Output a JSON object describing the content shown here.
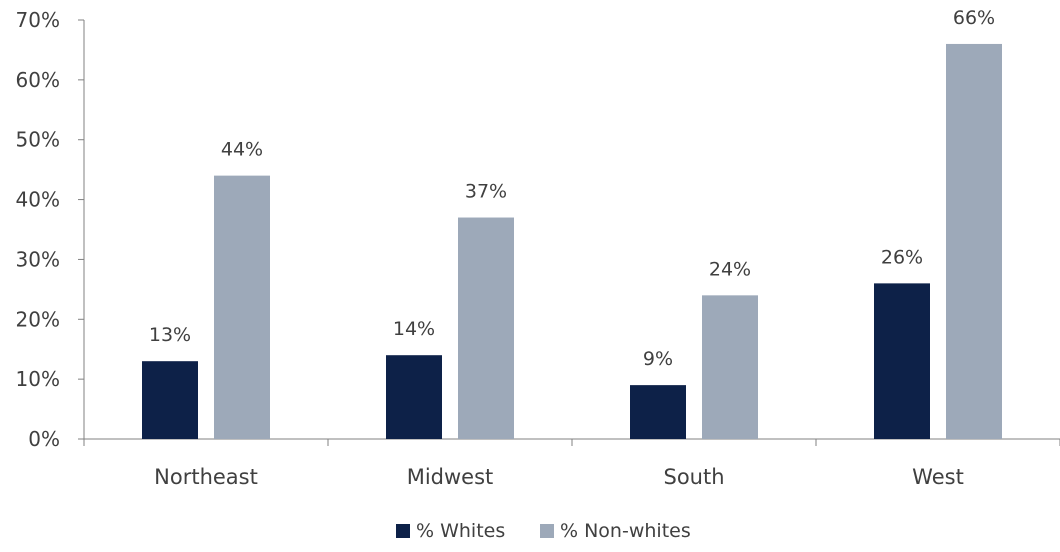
{
  "chart_data": {
    "type": "bar",
    "categories": [
      "Northeast",
      "Midwest",
      "South",
      "West"
    ],
    "series": [
      {
        "name": "% Whites",
        "values": [
          13,
          14,
          9,
          26
        ],
        "color": "#0d2148"
      },
      {
        "name": "% Non-whites",
        "values": [
          44,
          37,
          24,
          66
        ],
        "color": "#9da9b9"
      }
    ],
    "ylim": [
      0,
      70
    ],
    "yticks": [
      0,
      10,
      20,
      30,
      40,
      50,
      60,
      70
    ],
    "yticks_labels": [
      "0%",
      "10%",
      "20%",
      "30%",
      "40%",
      "50%",
      "60%",
      "70%"
    ],
    "data_labels": [
      [
        "13%",
        "14%",
        "9%",
        "26%"
      ],
      [
        "44%",
        "37%",
        "24%",
        "66%"
      ]
    ],
    "title": "",
    "xlabel": "",
    "ylabel": "",
    "grid": false,
    "legend_position": "bottom-center"
  }
}
